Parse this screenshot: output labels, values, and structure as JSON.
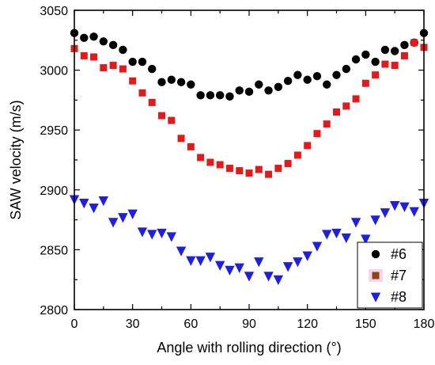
{
  "chart_data": {
    "type": "scatter",
    "xlabel": "Angle with rolling direction (°)",
    "ylabel": "SAW velocity (m/s)",
    "xlim": [
      0,
      180
    ],
    "ylim": [
      2800,
      3050
    ],
    "xticks": [
      "0",
      "30",
      "60",
      "90",
      "120",
      "150",
      "180"
    ],
    "yticks": [
      "2800",
      "2850",
      "2900",
      "2950",
      "3000",
      "3050"
    ],
    "grid": false,
    "legend_position": "bottom-right",
    "series": [
      {
        "name": "#6",
        "marker": "circle",
        "color": "#000000",
        "x": [
          0,
          5,
          10,
          15,
          20,
          25,
          30,
          35,
          40,
          45,
          50,
          55,
          60,
          65,
          70,
          75,
          80,
          85,
          90,
          95,
          100,
          105,
          110,
          115,
          120,
          125,
          130,
          135,
          140,
          145,
          150,
          155,
          160,
          165,
          170,
          175,
          180
        ],
        "y": [
          3031,
          3027,
          3028,
          3024,
          3021,
          3017,
          3007,
          3007,
          3001,
          2990,
          2992,
          2990,
          2988,
          2979,
          2979,
          2979,
          2978,
          2983,
          2982,
          2988,
          2983,
          2986,
          2991,
          2996,
          2992,
          2995,
          2988,
          2996,
          3001,
          3009,
          3013,
          3007,
          3017,
          3016,
          3021,
          3023,
          3031
        ]
      },
      {
        "name": "#7",
        "marker": "square",
        "color": "#e31a1c",
        "legend_color": "#8b4513",
        "x": [
          0,
          5,
          10,
          15,
          20,
          25,
          30,
          35,
          40,
          45,
          50,
          55,
          60,
          65,
          70,
          75,
          80,
          85,
          90,
          95,
          100,
          105,
          110,
          115,
          120,
          125,
          130,
          135,
          140,
          145,
          150,
          155,
          160,
          165,
          170,
          175,
          180
        ],
        "y": [
          3018,
          3012,
          3011,
          3002,
          3004,
          3001,
          2991,
          2981,
          2973,
          2962,
          2958,
          2943,
          2936,
          2927,
          2923,
          2921,
          2918,
          2916,
          2914,
          2917,
          2913,
          2918,
          2922,
          2929,
          2937,
          2947,
          2955,
          2965,
          2970,
          2976,
          2989,
          2996,
          3005,
          3004,
          3012,
          3023,
          3019
        ]
      },
      {
        "name": "#8",
        "marker": "triangle-down",
        "color": "#1f1fe0",
        "x": [
          0,
          5,
          10,
          15,
          20,
          25,
          30,
          35,
          40,
          45,
          50,
          55,
          60,
          65,
          70,
          75,
          80,
          85,
          90,
          95,
          100,
          105,
          110,
          115,
          120,
          125,
          130,
          135,
          140,
          145,
          150,
          155,
          160,
          165,
          170,
          175,
          180
        ],
        "y": [
          2892,
          2889,
          2885,
          2891,
          2873,
          2877,
          2880,
          2865,
          2863,
          2864,
          2861,
          2849,
          2841,
          2841,
          2844,
          2837,
          2833,
          2835,
          2828,
          2840,
          2828,
          2825,
          2836,
          2840,
          2845,
          2853,
          2863,
          2864,
          2860,
          2873,
          2859,
          2875,
          2881,
          2887,
          2886,
          2882,
          2889
        ]
      }
    ]
  }
}
